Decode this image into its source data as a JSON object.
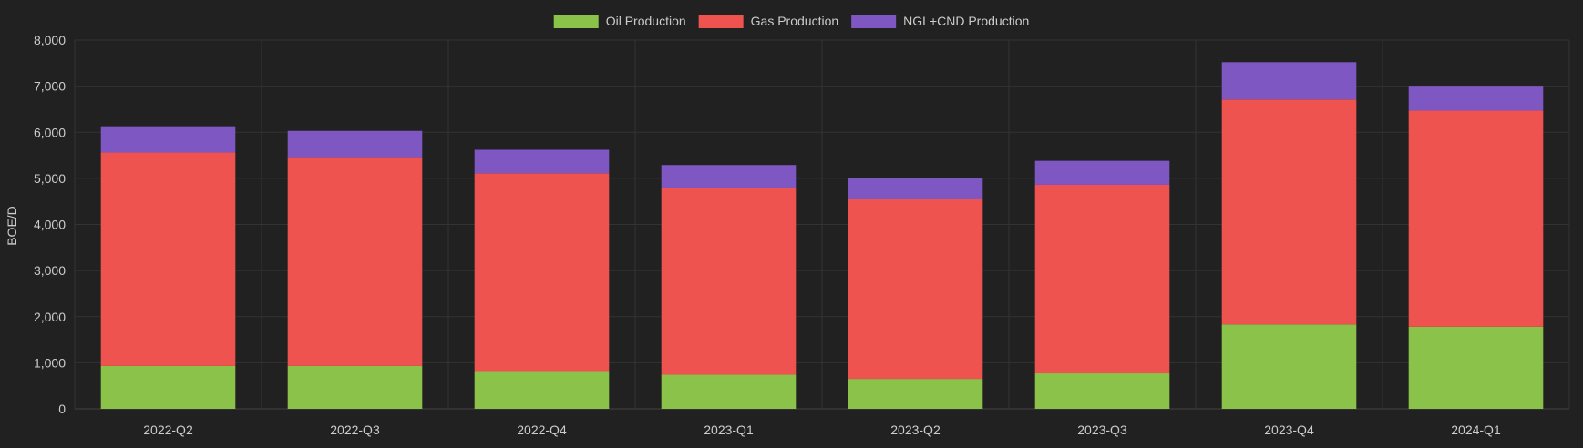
{
  "chart_data": {
    "type": "bar",
    "stacked": true,
    "categories": [
      "2022-Q2",
      "2022-Q3",
      "2022-Q4",
      "2023-Q1",
      "2023-Q2",
      "2023-Q3",
      "2023-Q4",
      "2024-Q1"
    ],
    "series": [
      {
        "name": "Oil Production",
        "color": "#8bc34a",
        "values": [
          930,
          930,
          820,
          740,
          650,
          770,
          1830,
          1780
        ]
      },
      {
        "name": "Gas Production",
        "color": "#ef5350",
        "values": [
          4630,
          4530,
          4290,
          4060,
          3910,
          4090,
          4880,
          4690
        ]
      },
      {
        "name": "NGL+CND Production",
        "color": "#7e57c2",
        "values": [
          570,
          570,
          510,
          490,
          440,
          520,
          810,
          540
        ]
      }
    ],
    "ylabel": "BOE/D",
    "ylim": [
      0,
      8000
    ],
    "yticks": [
      "0",
      "1,000",
      "2,000",
      "3,000",
      "4,000",
      "5,000",
      "6,000",
      "7,000",
      "8,000"
    ],
    "grid": true,
    "legend_position": "top-center"
  },
  "colors": {
    "background": "#212121",
    "grid": "#333333",
    "axis": "#444444",
    "text": "#cccccc"
  }
}
